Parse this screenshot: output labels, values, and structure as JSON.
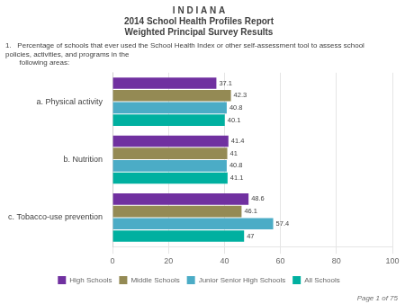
{
  "chart_data": {
    "type": "bar",
    "orientation": "horizontal",
    "title": [
      "I N D I A N A",
      "2014 School Health Profiles Report",
      "Weighted Principal Survey Results"
    ],
    "subtitle": "1.   Percentage of schools that ever used the School Health Index or other self-assessment tool to assess school policies, activities, and programs in the\n       following areas:",
    "annotations": [
      "Page 1 of 75"
    ],
    "categories": [
      "a. Physical activity",
      "b. Nutrition",
      "c. Tobacco-use prevention"
    ],
    "series": [
      {
        "name": "High Schools",
        "color": "#7030a0",
        "values": [
          37.1,
          41.4,
          48.6
        ]
      },
      {
        "name": "Middle Schools",
        "color": "#948a54",
        "values": [
          42.3,
          41.0,
          46.1
        ]
      },
      {
        "name": "Junior Senior High Schools",
        "color": "#4bacc6",
        "values": [
          40.8,
          40.8,
          57.4
        ]
      },
      {
        "name": "All Schools",
        "color": "#00b0a0",
        "values": [
          40.1,
          41.1,
          47.0
        ]
      }
    ],
    "xlim": [
      0,
      100
    ],
    "xticks": [
      0,
      20,
      40,
      60,
      80,
      100
    ],
    "grid": true,
    "legend": "bottom",
    "data_labels": true
  }
}
